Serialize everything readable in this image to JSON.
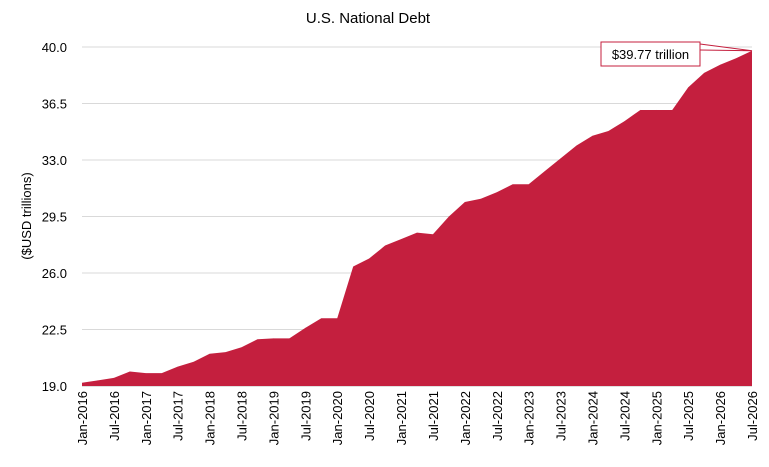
{
  "chart_data": {
    "type": "area",
    "title": "U.S. National Debt",
    "xlabel": "",
    "ylabel": "($USD trillions)",
    "ylim": [
      19.0,
      40.0
    ],
    "yticks": [
      "19.0",
      "22.5",
      "26.0",
      "29.5",
      "33.0",
      "36.5",
      "40.0"
    ],
    "grid": "horizontal",
    "legend": "none",
    "colors": {
      "area": "#C41F3E",
      "grid": "#D9D9D9",
      "callout_border": "#C41F3E"
    },
    "x_tick_labels": [
      "Jan-2016",
      "Jul-2016",
      "Jan-2017",
      "Jul-2017",
      "Jan-2018",
      "Jul-2018",
      "Jan-2019",
      "Jul-2019",
      "Jan-2020",
      "Jul-2020",
      "Jan-2021",
      "Jul-2021",
      "Jan-2022",
      "Jul-2022",
      "Jan-2023",
      "Jul-2023",
      "Jan-2024",
      "Jul-2024",
      "Jan-2025",
      "Jul-2025",
      "Jan-2026",
      "Jul-2026"
    ],
    "annotation": {
      "label": "$39.77 trillion",
      "x": "Jul-2026",
      "y": 39.77
    },
    "x": [
      "Jan-2016",
      "Apr-2016",
      "Jul-2016",
      "Oct-2016",
      "Jan-2017",
      "Apr-2017",
      "Jul-2017",
      "Oct-2017",
      "Jan-2018",
      "Apr-2018",
      "Jul-2018",
      "Oct-2018",
      "Jan-2019",
      "Apr-2019",
      "Jul-2019",
      "Oct-2019",
      "Jan-2020",
      "Apr-2020",
      "Jul-2020",
      "Oct-2020",
      "Jan-2021",
      "Apr-2021",
      "Jul-2021",
      "Oct-2021",
      "Jan-2022",
      "Apr-2022",
      "Jul-2022",
      "Oct-2022",
      "Jan-2023",
      "Apr-2023",
      "Jul-2023",
      "Oct-2023",
      "Jan-2024",
      "Apr-2024",
      "Jul-2024",
      "Oct-2024",
      "Jan-2025",
      "Apr-2025",
      "Jul-2025",
      "Oct-2025",
      "Jan-2026",
      "Apr-2026",
      "Jul-2026"
    ],
    "values": [
      19.2,
      19.35,
      19.5,
      19.9,
      19.8,
      19.8,
      20.2,
      20.5,
      21.0,
      21.1,
      21.4,
      21.9,
      21.95,
      21.95,
      22.6,
      23.2,
      23.2,
      26.4,
      26.9,
      27.7,
      28.1,
      28.5,
      28.4,
      29.5,
      30.4,
      30.6,
      31.0,
      31.5,
      31.5,
      32.3,
      33.1,
      33.9,
      34.5,
      34.8,
      35.4,
      36.1,
      36.1,
      36.1,
      37.5,
      38.4,
      38.9,
      39.3,
      39.77
    ]
  }
}
